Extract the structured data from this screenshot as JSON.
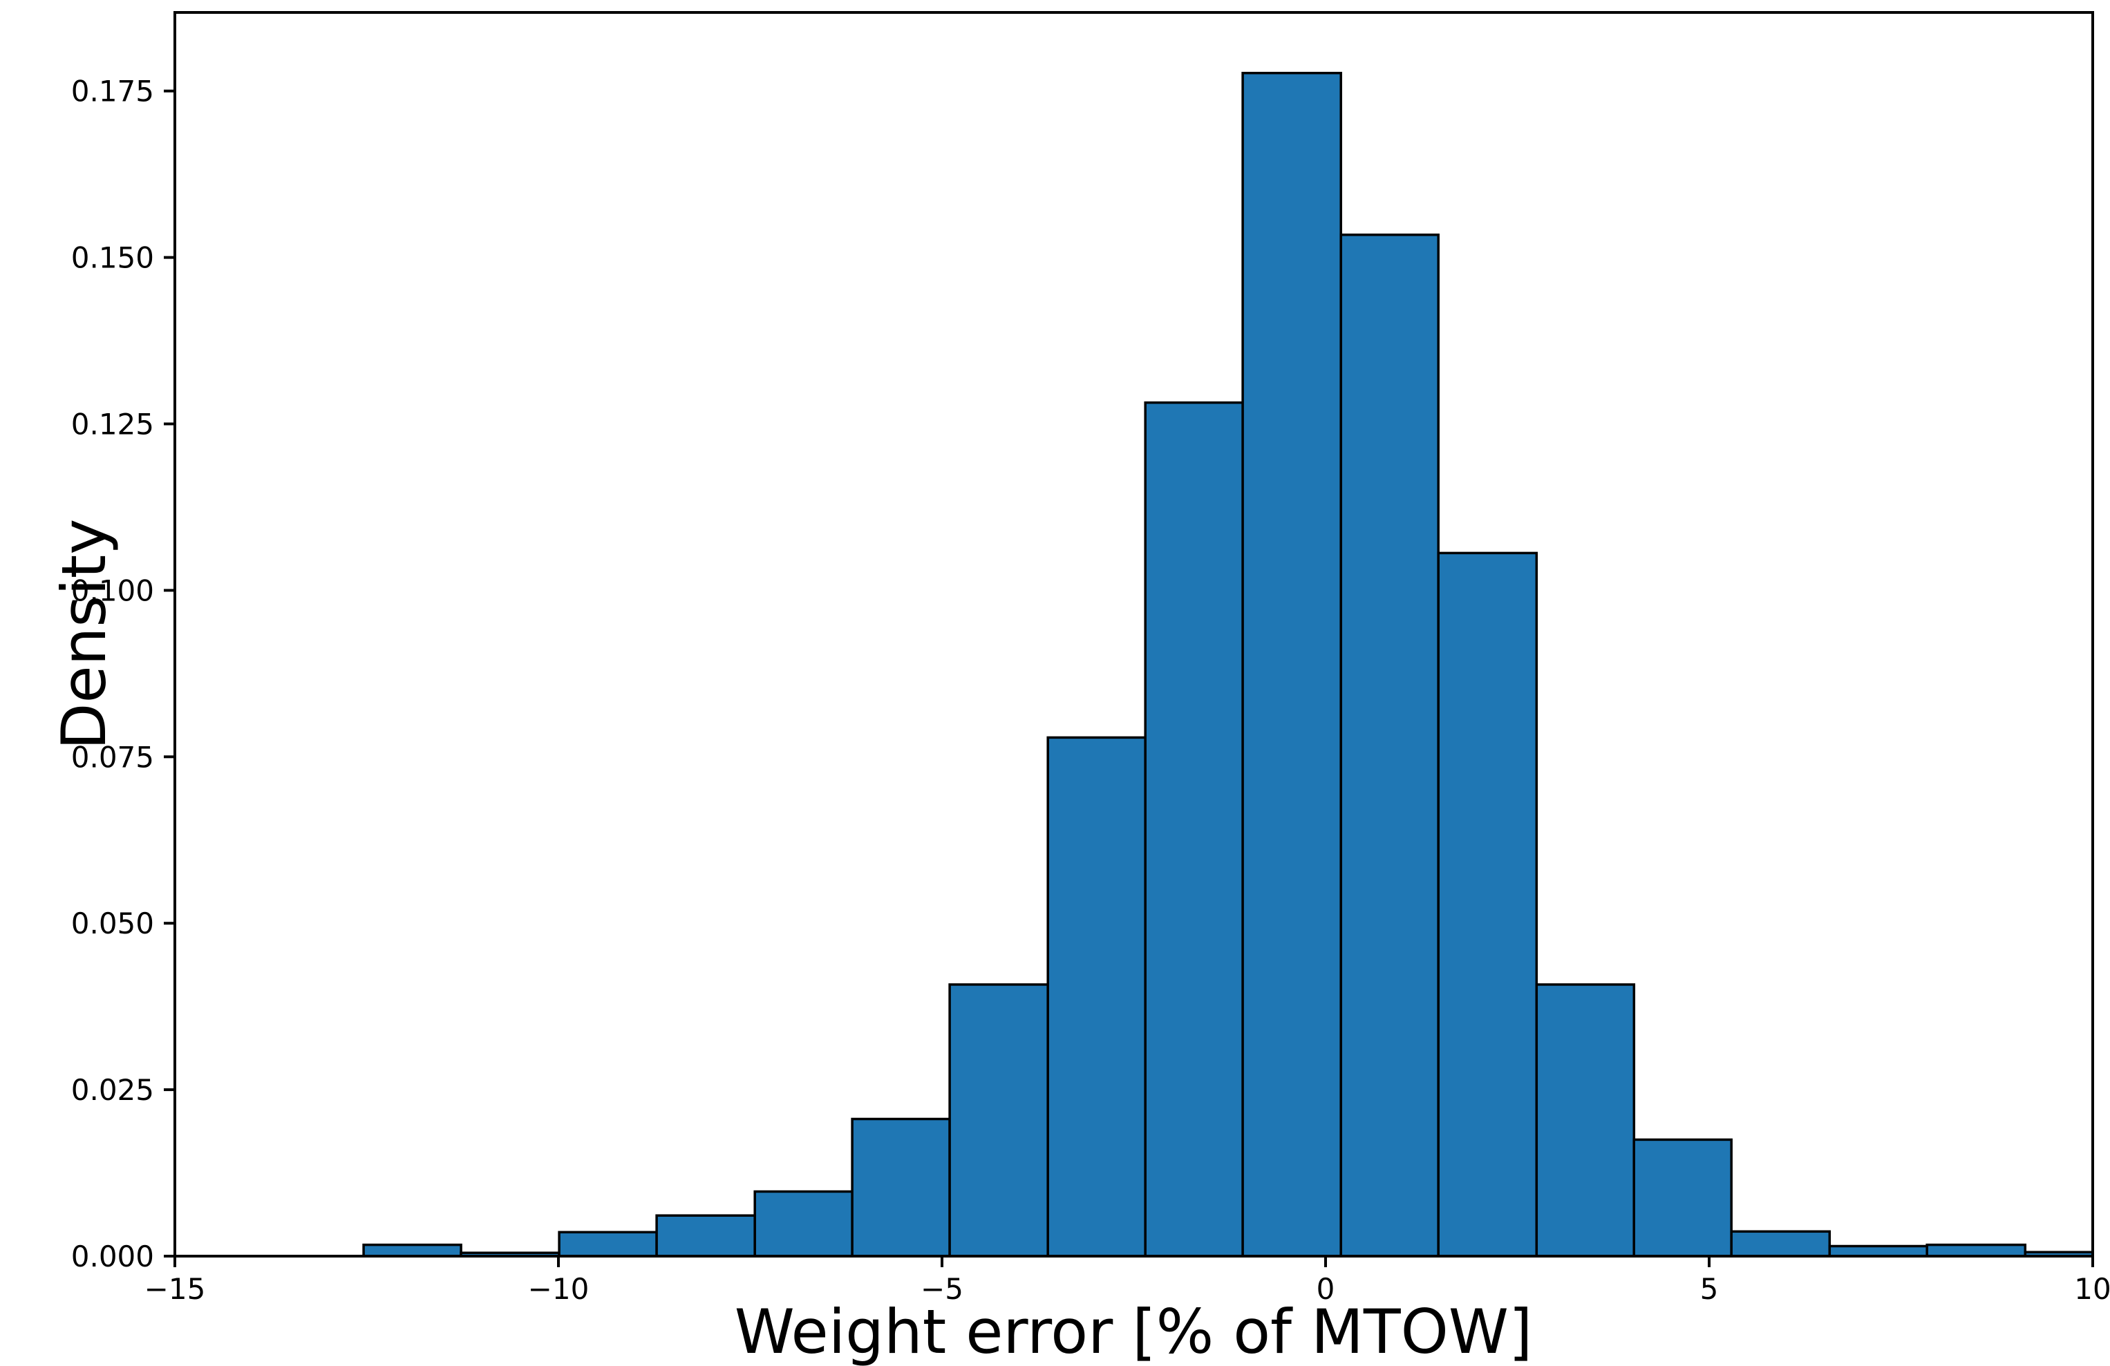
{
  "chart_data": {
    "type": "bar",
    "subtype": "histogram-density",
    "title": "",
    "xlabel": "Weight error [% of MTOW]",
    "ylabel": "Density",
    "xlim": [
      -15,
      10
    ],
    "ylim": [
      0,
      0.1868
    ],
    "grid": false,
    "legend": null,
    "bar_color": "#1f77b4",
    "bar_edge_color": "#000000",
    "axis_color": "#000000",
    "background_color": "#ffffff",
    "bin_edges": [
      -12.54,
      -11.27,
      -9.99,
      -8.72,
      -7.44,
      -6.17,
      -4.9,
      -3.62,
      -2.35,
      -1.08,
      0.2,
      1.47,
      2.75,
      4.02,
      5.29,
      6.57,
      7.84,
      9.12,
      10.39
    ],
    "densities": [
      0.0017,
      0.0005,
      0.0036,
      0.0061,
      0.0097,
      0.0206,
      0.0408,
      0.0779,
      0.1282,
      0.1777,
      0.1534,
      0.1056,
      0.0408,
      0.0175,
      0.0037,
      0.0015,
      0.0017,
      0.0006
    ],
    "x_ticks": [
      {
        "value": -15,
        "label": "−15"
      },
      {
        "value": -10,
        "label": "−10"
      },
      {
        "value": -5,
        "label": "−5"
      },
      {
        "value": 0,
        "label": "0"
      },
      {
        "value": 5,
        "label": "5"
      },
      {
        "value": 10,
        "label": "10"
      }
    ],
    "y_ticks": [
      {
        "value": 0.0,
        "label": "0.000"
      },
      {
        "value": 0.025,
        "label": "0.025"
      },
      {
        "value": 0.05,
        "label": "0.050"
      },
      {
        "value": 0.075,
        "label": "0.075"
      },
      {
        "value": 0.1,
        "label": "0.100"
      },
      {
        "value": 0.125,
        "label": "0.125"
      },
      {
        "value": 0.15,
        "label": "0.150"
      },
      {
        "value": 0.175,
        "label": "0.175"
      }
    ]
  }
}
